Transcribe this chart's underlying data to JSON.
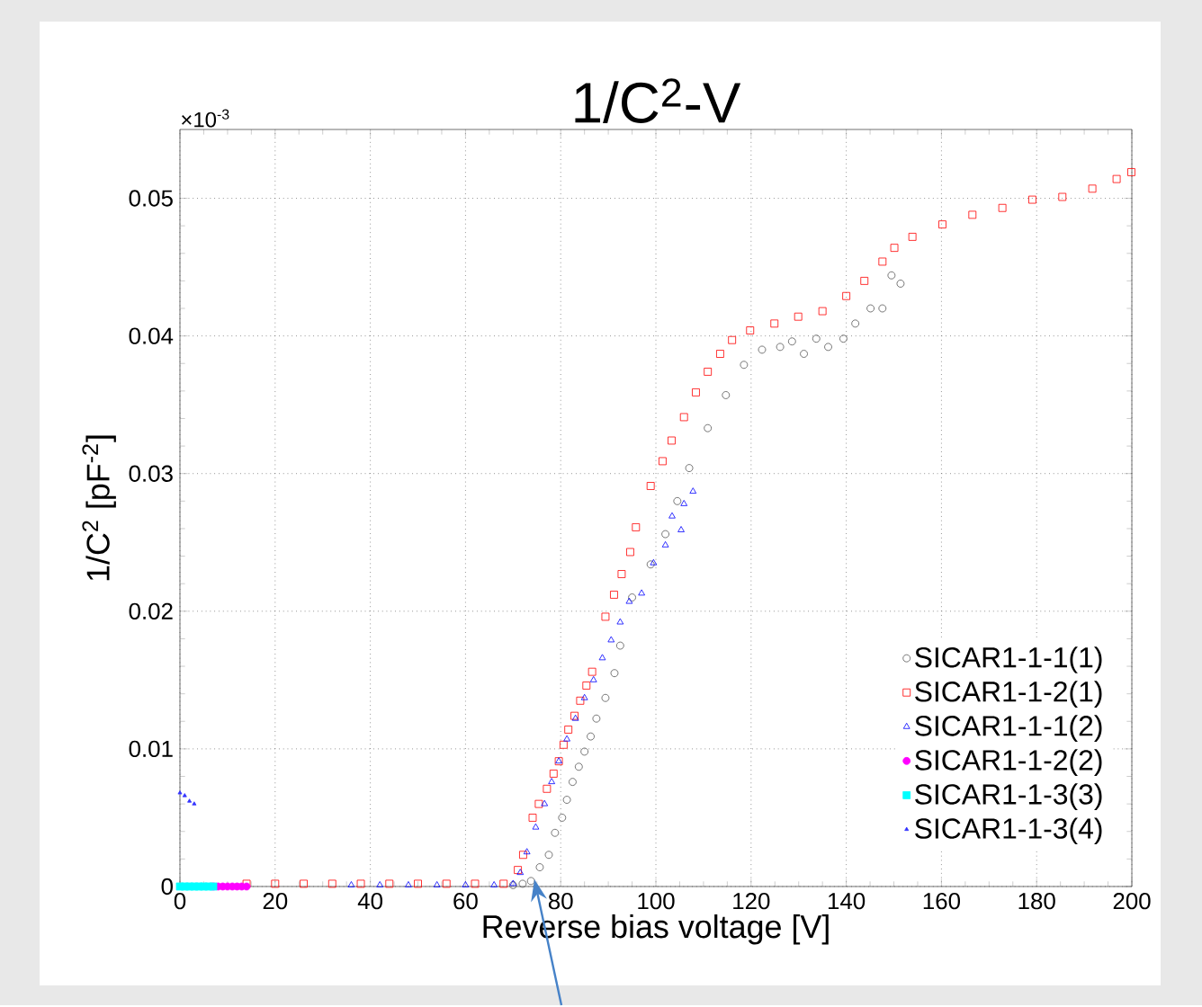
{
  "chart_data": {
    "type": "scatter",
    "title": "1/C$^{2}$-V",
    "xlabel": "Reverse bias voltage [V]",
    "ylabel": "1/C$^{2}$ [pF$^{-2}$]",
    "annotations": [
      "×10$^{-3}$"
    ],
    "xlim": [
      0,
      200
    ],
    "ylim": [
      0,
      0.055
    ],
    "xticks": [
      0,
      20,
      40,
      60,
      80,
      100,
      120,
      140,
      160,
      180,
      200
    ],
    "yticks": [
      0,
      0.01,
      0.02,
      0.03,
      0.04,
      0.05
    ],
    "grid": true,
    "legend": "bottom right",
    "series": [
      {
        "name": "SICAR1-1-1(1)",
        "color": "#555555",
        "marker": "circle",
        "x": [
          70,
          72,
          73.75,
          75.6,
          77.5,
          78.8,
          80.3,
          81.3,
          82.5,
          83.8,
          85,
          86.3,
          87.5,
          89.4,
          91.3,
          92.5,
          95,
          98.9,
          102,
          104.5,
          107,
          110.9,
          114.7,
          118.5,
          122.3,
          126.1,
          128.6,
          131.1,
          133.7,
          136.2,
          139.4,
          141.9,
          145.1,
          147.6,
          149.5,
          151.4
        ],
        "values": [
          0.0001,
          0.0002,
          0.0004,
          0.0014,
          0.0023,
          0.0039,
          0.005,
          0.0063,
          0.0076,
          0.0087,
          0.0098,
          0.0109,
          0.0122,
          0.0137,
          0.0155,
          0.0175,
          0.021,
          0.0234,
          0.0256,
          0.028,
          0.0304,
          0.0333,
          0.0357,
          0.0379,
          0.039,
          0.0392,
          0.0396,
          0.0387,
          0.0398,
          0.0392,
          0.0398,
          0.0409,
          0.042,
          0.042,
          0.0444,
          0.0438
        ]
      },
      {
        "name": "SICAR1-1-2(1)",
        "color": "#ff0000",
        "marker": "square",
        "x": [
          14,
          20,
          26,
          32,
          38,
          44,
          50,
          56,
          62,
          68,
          71,
          72.1,
          74.1,
          75.4,
          77.1,
          78.5,
          79.6,
          80.6,
          81.6,
          82.9,
          84.1,
          85.4,
          86.6,
          89.4,
          91.2,
          92.8,
          94.6,
          95.8,
          98.9,
          101.4,
          103.3,
          105.9,
          108.4,
          110.9,
          113.5,
          116,
          119.8,
          124.9,
          129.9,
          135,
          140,
          143.8,
          147.6,
          150.1,
          153.9,
          160.2,
          166.5,
          172.8,
          179.1,
          185.4,
          191.7,
          196.8,
          199.9
        ],
        "values": [
          0.0002,
          0.0002,
          0.0002,
          0.0002,
          0.0002,
          0.0002,
          0.0002,
          0.0002,
          0.0002,
          0.0002,
          0.0012,
          0.0023,
          0.005,
          0.006,
          0.0071,
          0.0082,
          0.0091,
          0.0103,
          0.0114,
          0.0124,
          0.0135,
          0.0146,
          0.0156,
          0.0196,
          0.0212,
          0.0227,
          0.0243,
          0.0261,
          0.0291,
          0.0309,
          0.0324,
          0.0341,
          0.0359,
          0.0374,
          0.0387,
          0.0397,
          0.0404,
          0.0409,
          0.0414,
          0.0418,
          0.0429,
          0.044,
          0.0454,
          0.0464,
          0.0472,
          0.0481,
          0.0488,
          0.0493,
          0.0499,
          0.0501,
          0.0507,
          0.0514,
          0.0519
        ]
      },
      {
        "name": "SICAR1-1-1(2)",
        "color": "#0000ff",
        "marker": "triangle",
        "x": [
          36,
          42,
          48,
          54,
          60,
          66,
          70,
          71.5,
          72.9,
          74.75,
          76.6,
          78.1,
          79.6,
          81.3,
          83.1,
          85,
          86.9,
          88.75,
          90.6,
          92.5,
          94.4,
          97,
          99.5,
          102,
          103.4,
          105.3,
          105.9,
          107.8
        ],
        "values": [
          0.0001,
          0.0001,
          0.0001,
          0.0001,
          0.0001,
          0.0001,
          0.0002,
          0.001,
          0.0025,
          0.0043,
          0.006,
          0.0076,
          0.0091,
          0.0107,
          0.0122,
          0.0137,
          0.015,
          0.0166,
          0.0179,
          0.0192,
          0.0207,
          0.0213,
          0.0235,
          0.0248,
          0.0269,
          0.0259,
          0.0278,
          0.0287
        ]
      },
      {
        "name": "SICAR1-1-2(2)",
        "color": "#ff00ff",
        "marker": "circle",
        "x": [
          7,
          8,
          9,
          10,
          11,
          12,
          13,
          14
        ],
        "values": [
          0,
          0,
          0,
          0,
          0,
          0,
          0,
          0
        ]
      },
      {
        "name": "SICAR1-1-3(3)",
        "color": "#00ffff",
        "marker": "square",
        "x": [
          0,
          1,
          2,
          3,
          4,
          5,
          6,
          7
        ],
        "values": [
          0,
          0,
          0,
          0,
          0,
          0,
          0,
          0
        ]
      },
      {
        "name": "SICAR1-1-3(4)",
        "color": "#3333ff",
        "marker": "triangle",
        "x": [
          0,
          1,
          2,
          3
        ],
        "values": [
          0.0068,
          0.0066,
          0.0062,
          0.006
        ]
      }
    ]
  }
}
